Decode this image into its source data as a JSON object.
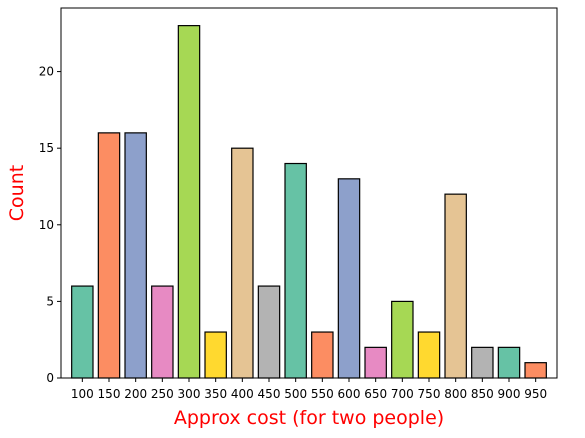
{
  "chart_data": {
    "type": "bar",
    "categories": [
      "100",
      "150",
      "200",
      "250",
      "300",
      "350",
      "400",
      "450",
      "500",
      "550",
      "600",
      "650",
      "700",
      "750",
      "800",
      "850",
      "900",
      "950"
    ],
    "values": [
      6,
      16,
      16,
      6,
      23,
      3,
      15,
      6,
      14,
      3,
      13,
      2,
      5,
      3,
      12,
      2,
      2,
      1
    ],
    "colors": [
      "#66c2a5",
      "#fc8d62",
      "#8da0cb",
      "#e78ac3",
      "#a6d854",
      "#ffd92f",
      "#e5c494",
      "#b3b3b3",
      "#66c2a5",
      "#fc8d62",
      "#8da0cb",
      "#e78ac3",
      "#a6d854",
      "#ffd92f",
      "#e5c494",
      "#b3b3b3",
      "#66c2a5",
      "#fc8d62"
    ],
    "bar_edge_color": "#000000",
    "xlabel": "Approx cost (for two people)",
    "ylabel": "Count",
    "label_color": "#ff0000",
    "ylim": [
      0,
      24.15
    ],
    "yticks": [
      0,
      5,
      10,
      15,
      20
    ],
    "grid": false
  }
}
